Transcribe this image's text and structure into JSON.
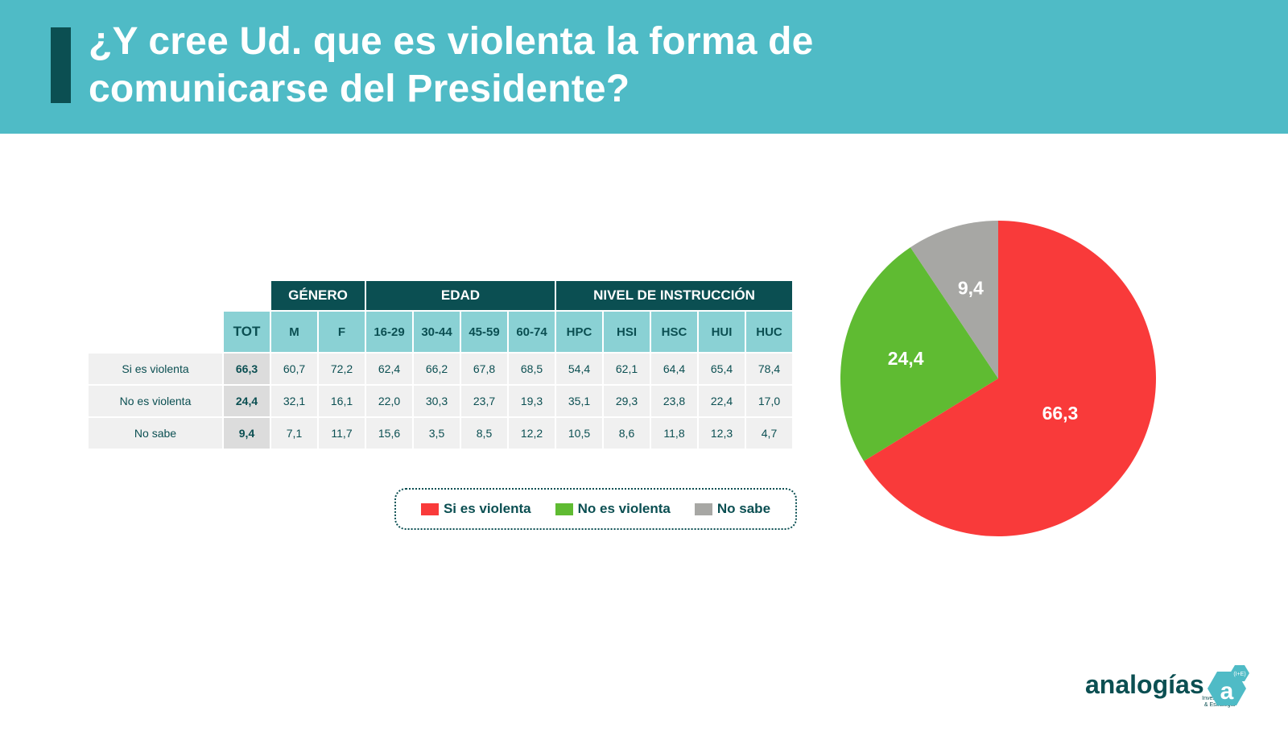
{
  "title_lines": [
    "¿Y cree Ud. que es violenta la forma de",
    "comunicarse del Presidente?"
  ],
  "table": {
    "groups": [
      "GÉNERO",
      "EDAD",
      "NIVEL DE INSTRUCCIÓN"
    ],
    "columns": [
      "TOT",
      "M",
      "F",
      "16-29",
      "30-44",
      "45-59",
      "60-74",
      "HPC",
      "HSI",
      "HSC",
      "HUI",
      "HUC"
    ],
    "rows": [
      {
        "label": "Si es violenta",
        "values": [
          "66,3",
          "60,7",
          "72,2",
          "62,4",
          "66,2",
          "67,8",
          "68,5",
          "54,4",
          "62,1",
          "64,4",
          "65,4",
          "78,4"
        ]
      },
      {
        "label": "No es violenta",
        "values": [
          "24,4",
          "32,1",
          "16,1",
          "22,0",
          "30,3",
          "23,7",
          "19,3",
          "35,1",
          "29,3",
          "23,8",
          "22,4",
          "17,0"
        ]
      },
      {
        "label": "No sabe",
        "values": [
          "9,4",
          "7,1",
          "11,7",
          "15,6",
          "3,5",
          "8,5",
          "12,2",
          "10,5",
          "8,6",
          "11,8",
          "12,3",
          "4,7"
        ]
      }
    ]
  },
  "legend": [
    {
      "label": "Si es violenta",
      "color": "#f93a3a"
    },
    {
      "label": "No es violenta",
      "color": "#5fbb32"
    },
    {
      "label": "No sabe",
      "color": "#a7a7a4"
    }
  ],
  "chart_data": {
    "type": "pie",
    "labels": [
      "Si es violenta",
      "No es violenta",
      "No sabe"
    ],
    "values": [
      66.3,
      24.4,
      9.4
    ],
    "value_labels": [
      "66,3",
      "24,4",
      "9,4"
    ],
    "colors": [
      "#f93a3a",
      "#5fbb32",
      "#a7a7a4"
    ],
    "start": "12 o'clock, clockwise"
  },
  "logo": {
    "name": "analogías",
    "mark_letter": "a",
    "mark_superscript": "(I+E)",
    "tagline_1": "Investigación",
    "tagline_2": "& Estrategia"
  }
}
